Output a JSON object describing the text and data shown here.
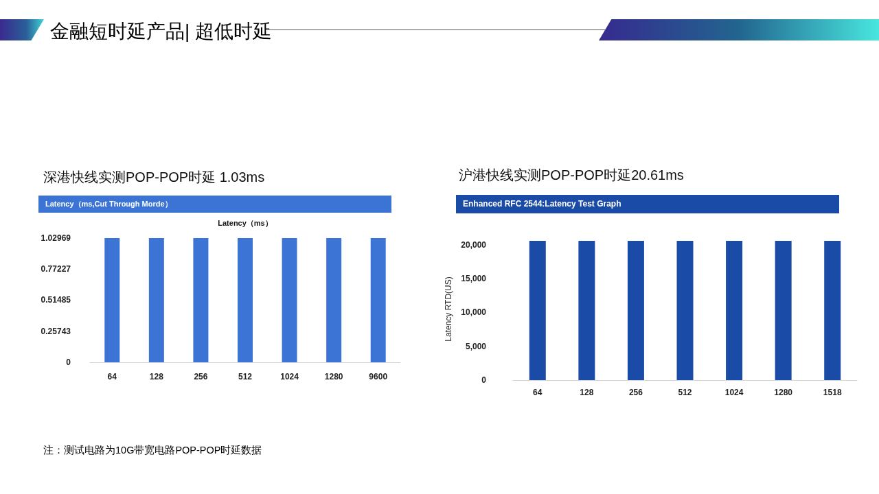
{
  "chart_data": [
    {
      "type": "other",
      "title": "金融短时延产品| 超低时延"
    },
    {
      "type": "bar",
      "title": "深港快线实测POP-POP时延 1.03ms",
      "subtitle": "Latency（ms,Cut Through Morde）",
      "annotations": [
        "Latency（ms）"
      ],
      "categories": [
        "64",
        "128",
        "256",
        "512",
        "1024",
        "1280",
        "9600"
      ],
      "values": [
        1.02969,
        1.02969,
        1.02969,
        1.02969,
        1.02969,
        1.02969,
        1.02969
      ],
      "color": "#3c74d6",
      "ylim": [
        0,
        1.02969
      ],
      "yticks": [
        0,
        0.25743,
        0.51485,
        0.77227,
        1.02969
      ]
    },
    {
      "type": "bar",
      "title": "沪港快线实测POP-POP时延20.61ms",
      "subtitle": "Enhanced RFC 2544:Latency Test Graph",
      "ylabel": "Latency RTD(US)",
      "categories": [
        "64",
        "128",
        "256",
        "512",
        "1024",
        "1280",
        "1518"
      ],
      "values": [
        20600,
        20600,
        20600,
        20600,
        20600,
        20600,
        20600
      ],
      "color": "#1a4ba6",
      "ylim": [
        0,
        21000
      ],
      "yticks": [
        0,
        {
          "value": 5000,
          "label": "5,000"
        },
        {
          "value": 10000,
          "label": "10,000"
        },
        {
          "value": 15000,
          "label": "15,000"
        },
        {
          "value": 20000,
          "label": "20,000"
        }
      ]
    },
    {
      "type": "other",
      "annotations": [
        "注：测试电路为10G带宽电路POP-POP时延数据"
      ]
    }
  ]
}
